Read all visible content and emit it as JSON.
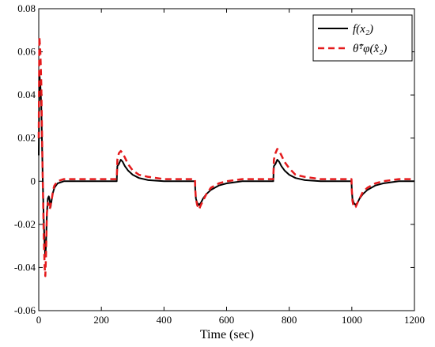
{
  "chart_data": {
    "type": "line",
    "xlabel": "Time (sec)",
    "ylabel": "",
    "title": "",
    "xlim": [
      0,
      1200
    ],
    "ylim": [
      -0.06,
      0.08
    ],
    "xticks": [
      0,
      200,
      400,
      600,
      800,
      1000,
      1200
    ],
    "yticks": [
      -0.06,
      -0.04,
      -0.02,
      0,
      0.02,
      0.04,
      0.06,
      0.08
    ],
    "xtick_labels": [
      "0",
      "200",
      "400",
      "600",
      "800",
      "1000",
      "1200"
    ],
    "ytick_labels": [
      "-0.06",
      "-0.04",
      "-0.02",
      "0",
      "0.02",
      "0.04",
      "0.06",
      "0.08"
    ],
    "grid": false,
    "legend_position": "top-right",
    "series": [
      {
        "name": "f(x₂)",
        "color": "#000000",
        "dash": "solid",
        "x": [
          0,
          2,
          5,
          8,
          10,
          13,
          16,
          19,
          21,
          23,
          26,
          29,
          32,
          35,
          38,
          42,
          46,
          50,
          55,
          60,
          70,
          80,
          100,
          130,
          160,
          200,
          249,
          250,
          251,
          256,
          262,
          268,
          275,
          285,
          300,
          320,
          350,
          400,
          450,
          499,
          500,
          502,
          506,
          512,
          518,
          525,
          535,
          550,
          575,
          600,
          650,
          700,
          749,
          750,
          751,
          756,
          762,
          768,
          775,
          785,
          800,
          820,
          850,
          900,
          950,
          999,
          1000,
          1002,
          1006,
          1012,
          1018,
          1025,
          1035,
          1050,
          1075,
          1100,
          1150,
          1200
        ],
        "values": [
          0.012,
          0.05,
          0.045,
          0.035,
          0.02,
          0.0,
          -0.018,
          -0.03,
          -0.035,
          -0.03,
          -0.015,
          -0.008,
          -0.007,
          -0.009,
          -0.012,
          -0.008,
          -0.005,
          -0.003,
          -0.002,
          -0.001,
          -0.0005,
          0.0,
          0.0,
          0.0,
          0.0,
          0.0,
          0.0,
          0.004,
          0.007,
          0.008,
          0.01,
          0.009,
          0.007,
          0.005,
          0.003,
          0.0015,
          0.0005,
          0.0,
          0.0,
          0.0,
          -0.004,
          -0.008,
          -0.01,
          -0.011,
          -0.01,
          -0.008,
          -0.006,
          -0.004,
          -0.002,
          -0.001,
          0.0,
          0.0,
          0.0,
          0.004,
          0.007,
          0.008,
          0.01,
          0.009,
          0.007,
          0.005,
          0.003,
          0.0015,
          0.0005,
          0.0,
          0.0,
          0.0,
          -0.004,
          -0.008,
          -0.01,
          -0.011,
          -0.01,
          -0.008,
          -0.006,
          -0.004,
          -0.002,
          -0.001,
          0.0,
          0.0
        ]
      },
      {
        "name": "θ̂ᵀφ(x̂₂)",
        "color": "#e41a1c",
        "dash": "dashed",
        "x": [
          0,
          2,
          5,
          8,
          10,
          13,
          16,
          19,
          21,
          23,
          26,
          29,
          32,
          35,
          38,
          42,
          46,
          50,
          55,
          60,
          70,
          80,
          100,
          130,
          160,
          200,
          249,
          250,
          251,
          256,
          262,
          268,
          275,
          285,
          300,
          320,
          350,
          400,
          450,
          499,
          500,
          502,
          506,
          512,
          518,
          525,
          535,
          550,
          575,
          600,
          650,
          700,
          749,
          750,
          751,
          756,
          762,
          768,
          775,
          785,
          800,
          820,
          850,
          900,
          950,
          999,
          1000,
          1002,
          1006,
          1012,
          1018,
          1025,
          1035,
          1050,
          1075,
          1100,
          1150,
          1200
        ],
        "values": [
          0.02,
          0.067,
          0.06,
          0.045,
          0.025,
          0.0,
          -0.025,
          -0.04,
          -0.044,
          -0.035,
          -0.015,
          -0.01,
          -0.011,
          -0.013,
          -0.011,
          -0.008,
          -0.004,
          -0.002,
          -0.001,
          0.0,
          0.0005,
          0.001,
          0.001,
          0.001,
          0.001,
          0.001,
          0.001,
          0.005,
          0.01,
          0.013,
          0.014,
          0.013,
          0.011,
          0.008,
          0.005,
          0.003,
          0.002,
          0.001,
          0.001,
          0.001,
          -0.004,
          -0.008,
          -0.011,
          -0.013,
          -0.011,
          -0.009,
          -0.006,
          -0.003,
          -0.001,
          0.0,
          0.001,
          0.001,
          0.001,
          0.005,
          0.01,
          0.013,
          0.015,
          0.014,
          0.012,
          0.009,
          0.006,
          0.003,
          0.002,
          0.001,
          0.001,
          0.001,
          -0.004,
          -0.009,
          -0.012,
          -0.012,
          -0.01,
          -0.008,
          -0.005,
          -0.003,
          -0.001,
          0.0,
          0.001,
          0.001
        ]
      }
    ]
  }
}
